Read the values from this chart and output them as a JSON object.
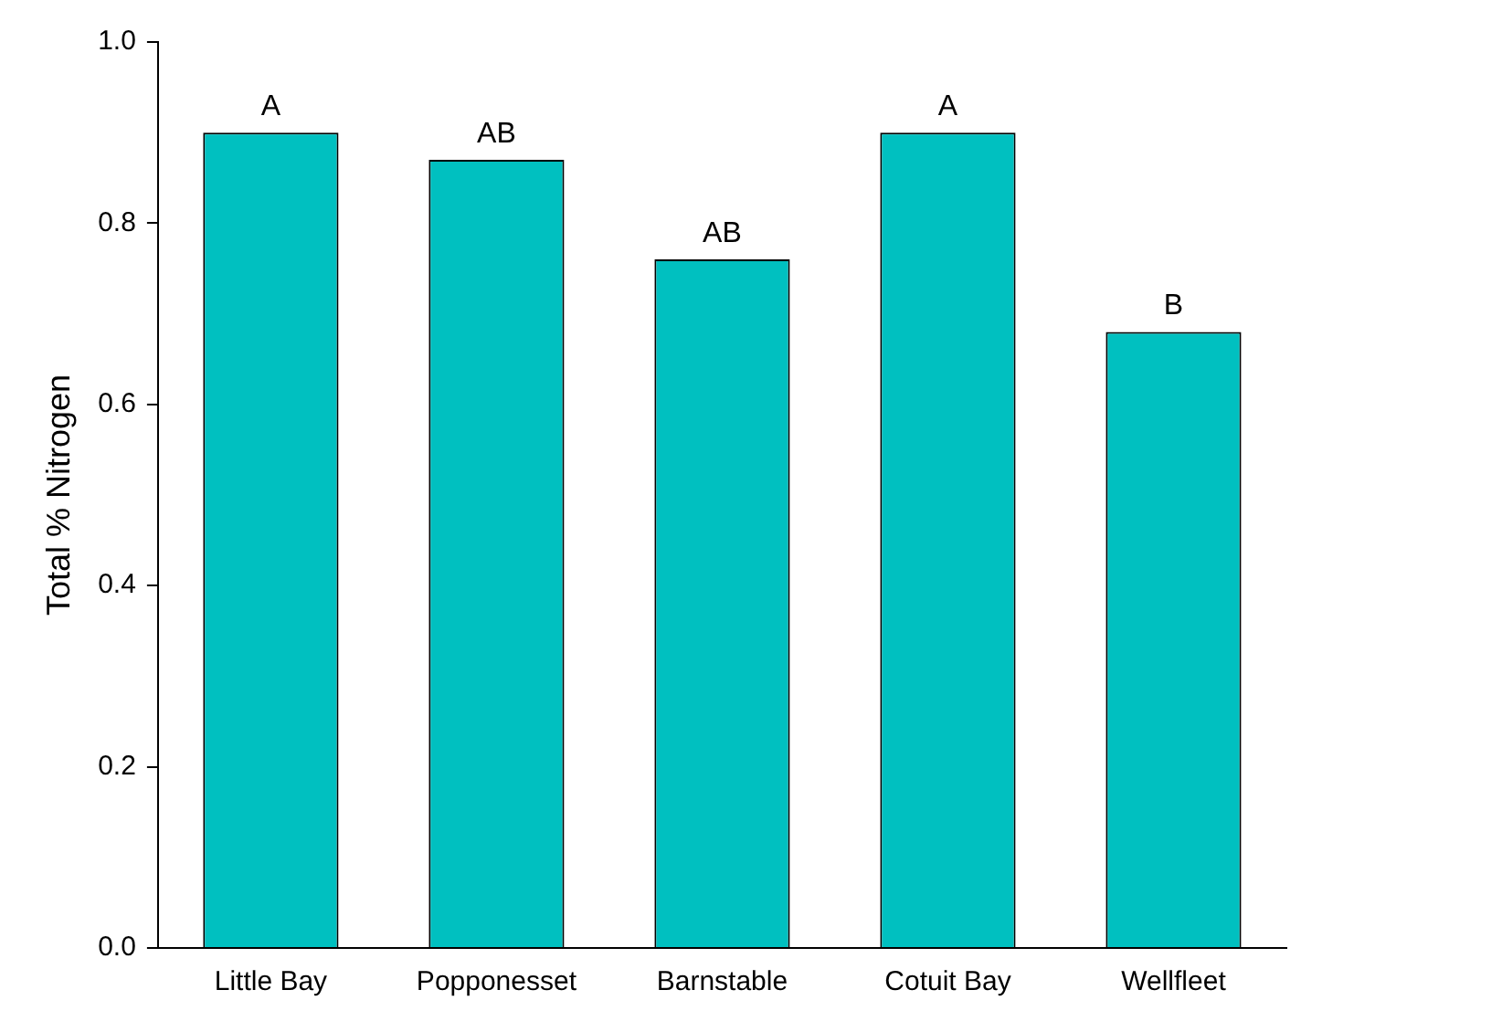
{
  "chart_data": {
    "type": "bar",
    "ylabel": "Total % Nitrogen",
    "categories": [
      "Little Bay",
      "Popponesset",
      "Barnstable",
      "Cotuit Bay",
      "Wellfleet"
    ],
    "values": [
      0.9,
      0.87,
      0.76,
      0.9,
      0.68
    ],
    "color": "#00c0c0",
    "ylim": [
      0,
      1
    ],
    "yticks": [
      {
        "value": 0,
        "label": "0.0"
      },
      {
        "value": 0.2,
        "label": "0.2"
      },
      {
        "value": 0.4,
        "label": "0.4"
      },
      {
        "value": 0.6,
        "label": "0.6"
      },
      {
        "value": 0.8,
        "label": "0.8"
      },
      {
        "value": 1,
        "label": "1.0"
      }
    ],
    "grid": false,
    "legend": false,
    "annotations": [
      {
        "text": "A",
        "x": "Little Bay",
        "y": 0.9
      },
      {
        "text": "AB",
        "x": "Popponesset",
        "y": 0.87
      },
      {
        "text": "AB",
        "x": "Barnstable",
        "y": 0.76
      },
      {
        "text": "A",
        "x": "Cotuit Bay",
        "y": 0.9
      },
      {
        "text": "B",
        "x": "Wellfleet",
        "y": 0.68
      }
    ]
  }
}
